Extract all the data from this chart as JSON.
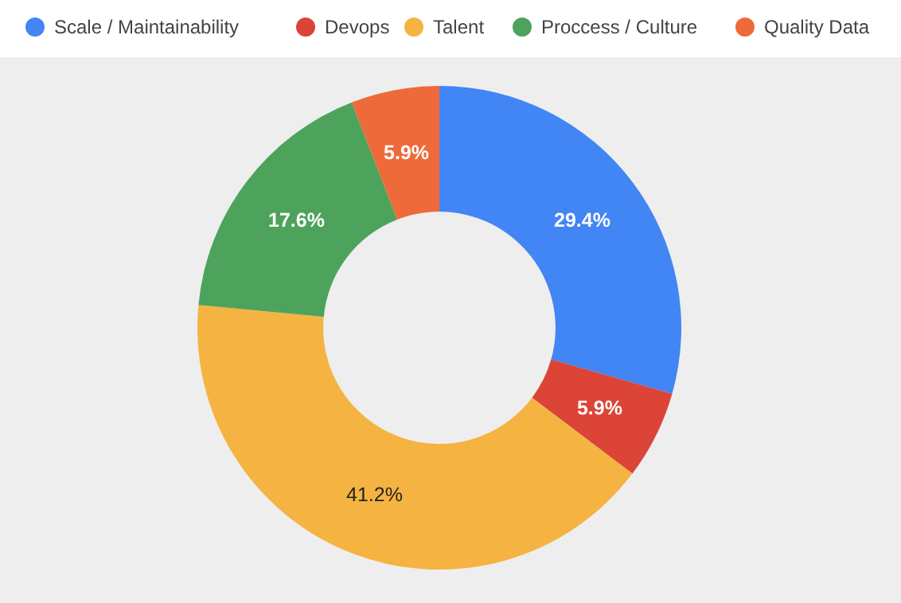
{
  "chart_data": {
    "type": "donut",
    "categories": [
      "Scale / Maintainability",
      "Devops",
      "Talent",
      "Proccess / Culture",
      "Quality Data"
    ],
    "values": [
      29.4,
      5.9,
      41.2,
      17.6,
      5.9
    ],
    "colors": [
      "#4285f4",
      "#db4437",
      "#f5b342",
      "#4ea35c",
      "#ee6a3a"
    ],
    "value_labels": [
      "29.4%",
      "5.9%",
      "41.2%",
      "17.6%",
      "5.9%"
    ],
    "legend": "top"
  }
}
